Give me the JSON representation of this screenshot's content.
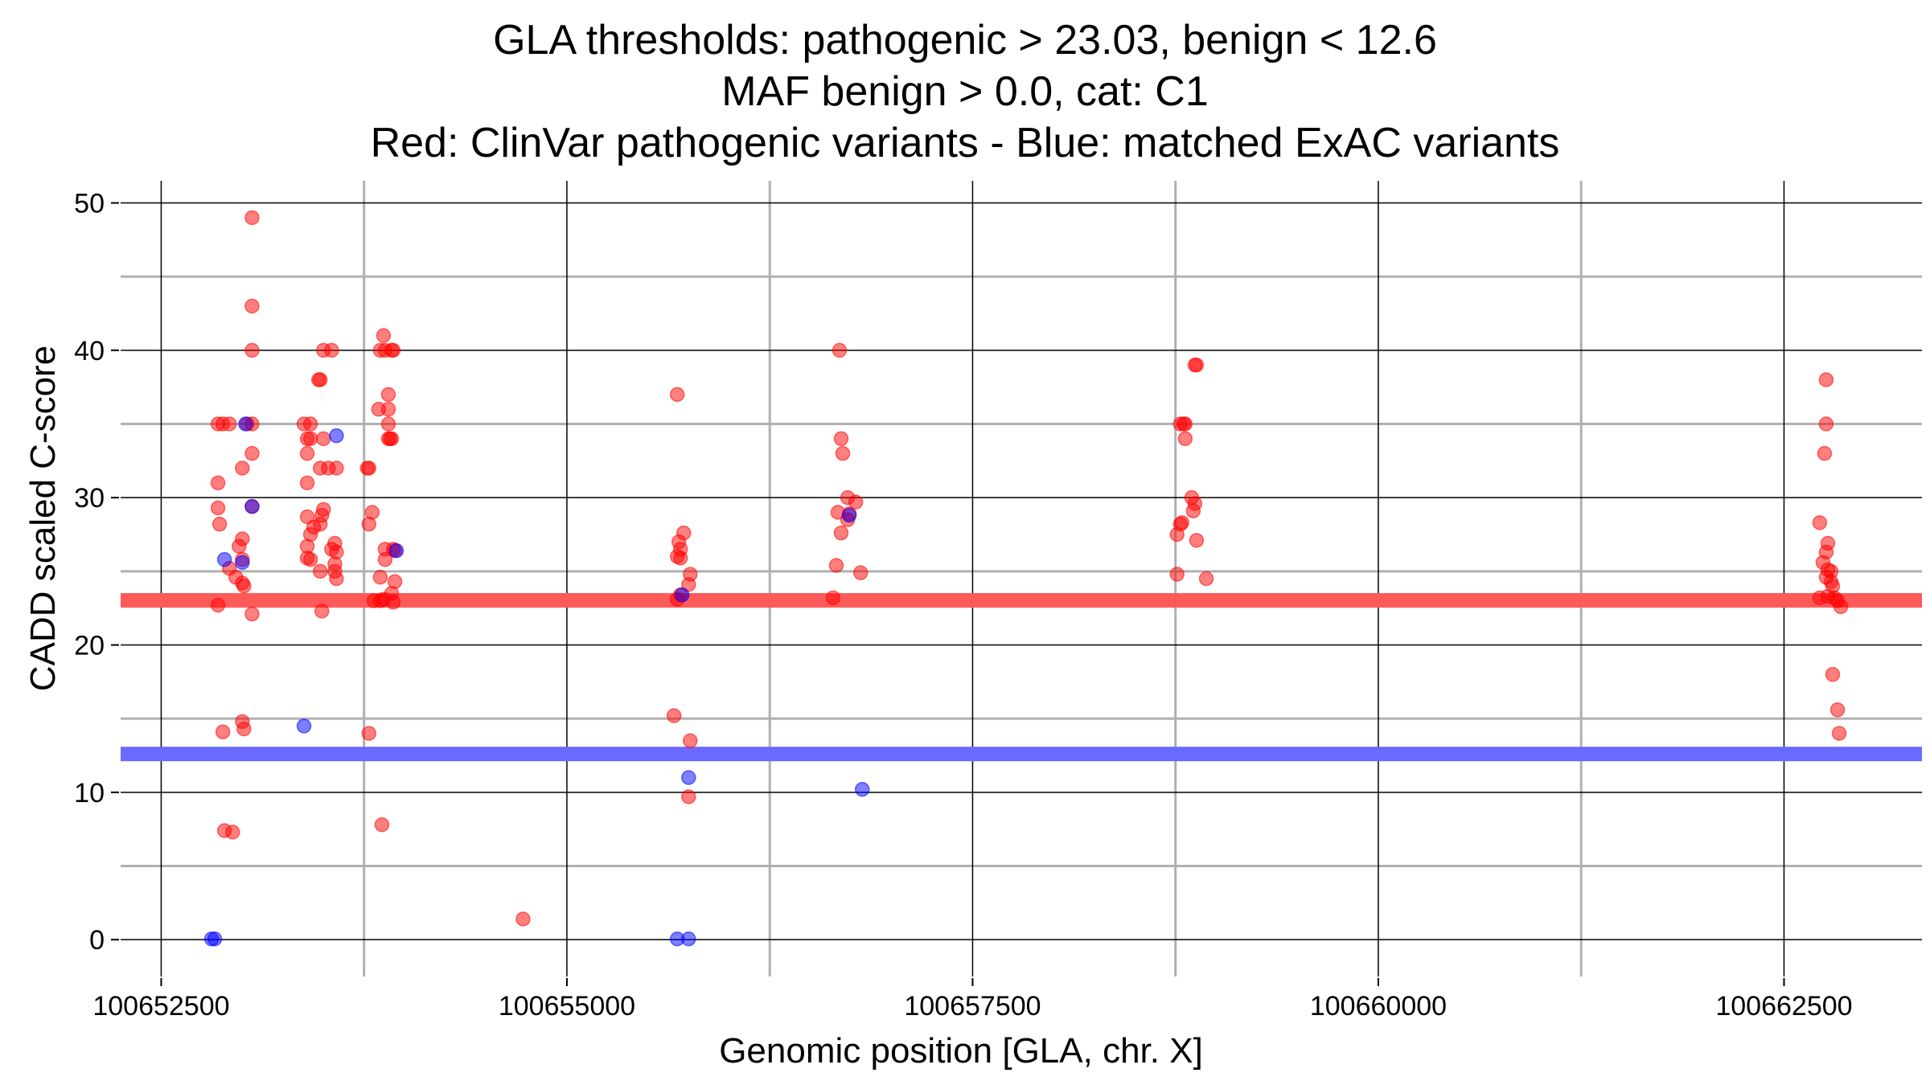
{
  "chart_data": {
    "type": "scatter",
    "title_lines": [
      "GLA thresholds: pathogenic > 23.03, benign < 12.6",
      "MAF benign > 0.0, cat: C1",
      "Red: ClinVar pathogenic variants - Blue: matched ExAC variants"
    ],
    "xlabel": "Genomic position [GLA, chr. X]",
    "ylabel": "CADD scaled C-score",
    "xlim": [
      100652250,
      100663350
    ],
    "ylim": [
      -2.5,
      51.5
    ],
    "x_ticks": [
      100652500,
      100655000,
      100657500,
      100660000,
      100662500
    ],
    "x_tick_labels": [
      "100652500",
      "100655000",
      "100657500",
      "100660000",
      "100662500"
    ],
    "x_minor_grid": [
      100653750,
      100656250,
      100658750,
      100661250
    ],
    "y_ticks": [
      0,
      10,
      20,
      30,
      40,
      50
    ],
    "y_tick_labels": [
      "0",
      "10",
      "20",
      "30",
      "40",
      "50"
    ],
    "y_minor_grid": [
      5,
      15,
      25,
      35,
      45
    ],
    "thresholds": [
      {
        "name": "pathogenic",
        "value": 23.03,
        "color": "#ff5a5a"
      },
      {
        "name": "benign",
        "value": 12.6,
        "color": "#6a6aff"
      }
    ],
    "colors": {
      "pathogenic": "#ff0000",
      "benign": "#0000ff"
    },
    "series": [
      {
        "name": "ClinVar pathogenic variants",
        "color": "#ff0000",
        "points": [
          [
            100653060,
            49
          ],
          [
            100653060,
            43
          ],
          [
            100653060,
            40
          ],
          [
            100652850,
            35
          ],
          [
            100652880,
            35
          ],
          [
            100652920,
            35
          ],
          [
            100653030,
            35
          ],
          [
            100653060,
            35
          ],
          [
            100653060,
            33
          ],
          [
            100652850,
            31
          ],
          [
            100653000,
            32
          ],
          [
            100652850,
            29.3
          ],
          [
            100653060,
            29.4
          ],
          [
            100652860,
            28.2
          ],
          [
            100653000,
            27.2
          ],
          [
            100652980,
            26.7
          ],
          [
            100652920,
            25.2
          ],
          [
            100653000,
            25.8
          ],
          [
            100652960,
            24.6
          ],
          [
            100653000,
            24.2
          ],
          [
            100653010,
            24.0
          ],
          [
            100652850,
            22.7
          ],
          [
            100653060,
            22.1
          ],
          [
            100652880,
            14.1
          ],
          [
            100653000,
            14.8
          ],
          [
            100653010,
            14.3
          ],
          [
            100652890,
            7.4
          ],
          [
            100652940,
            7.3
          ],
          [
            100653500,
            40
          ],
          [
            100653550,
            40
          ],
          [
            100653470,
            38
          ],
          [
            100653480,
            38
          ],
          [
            100653380,
            35
          ],
          [
            100653420,
            35
          ],
          [
            100653400,
            34
          ],
          [
            100653420,
            34
          ],
          [
            100653500,
            34
          ],
          [
            100653400,
            33
          ],
          [
            100653480,
            32
          ],
          [
            100653530,
            32
          ],
          [
            100653580,
            32
          ],
          [
            100653400,
            31
          ],
          [
            100653400,
            28.7
          ],
          [
            100653440,
            28.0
          ],
          [
            100653500,
            29.2
          ],
          [
            100653490,
            28.8
          ],
          [
            100653480,
            28.2
          ],
          [
            100653420,
            27.5
          ],
          [
            100653400,
            26.7
          ],
          [
            100653570,
            26.9
          ],
          [
            100653550,
            26.5
          ],
          [
            100653580,
            26.3
          ],
          [
            100653400,
            25.9
          ],
          [
            100653420,
            25.8
          ],
          [
            100653570,
            25.5
          ],
          [
            100653570,
            25.0
          ],
          [
            100653480,
            25.0
          ],
          [
            100653580,
            24.5
          ],
          [
            100653490,
            22.3
          ],
          [
            100653870,
            41
          ],
          [
            100653880,
            40
          ],
          [
            100653850,
            40
          ],
          [
            100653920,
            40
          ],
          [
            100653930,
            40
          ],
          [
            100653900,
            37
          ],
          [
            100653840,
            36
          ],
          [
            100653900,
            36
          ],
          [
            100653900,
            35
          ],
          [
            100653910,
            34
          ],
          [
            100653900,
            34
          ],
          [
            100653920,
            34
          ],
          [
            100653770,
            32
          ],
          [
            100653780,
            32
          ],
          [
            100653800,
            29
          ],
          [
            100653780,
            28.2
          ],
          [
            100653880,
            26.5
          ],
          [
            100653930,
            26.5
          ],
          [
            100653940,
            26.4
          ],
          [
            100653880,
            25.8
          ],
          [
            100653850,
            24.6
          ],
          [
            100653940,
            24.3
          ],
          [
            100653920,
            23.5
          ],
          [
            100653810,
            23.0
          ],
          [
            100653850,
            23.0
          ],
          [
            100653870,
            23.1
          ],
          [
            100653930,
            22.9
          ],
          [
            100653780,
            14.0
          ],
          [
            100653860,
            7.8
          ],
          [
            100654730,
            1.4
          ],
          [
            100655680,
            37
          ],
          [
            100655720,
            27.6
          ],
          [
            100655690,
            27.0
          ],
          [
            100655700,
            26.5
          ],
          [
            100655680,
            26.0
          ],
          [
            100655700,
            25.9
          ],
          [
            100655760,
            24.8
          ],
          [
            100655750,
            24.1
          ],
          [
            100655700,
            23.4
          ],
          [
            100655680,
            23.1
          ],
          [
            100655660,
            15.2
          ],
          [
            100655760,
            13.5
          ],
          [
            100655750,
            9.7
          ],
          [
            100656680,
            40
          ],
          [
            100656690,
            34
          ],
          [
            100656700,
            33
          ],
          [
            100656730,
            30
          ],
          [
            100656780,
            29.7
          ],
          [
            100656670,
            29.0
          ],
          [
            100656740,
            28.9
          ],
          [
            100656730,
            28.5
          ],
          [
            100656690,
            27.6
          ],
          [
            100656660,
            25.4
          ],
          [
            100656810,
            24.9
          ],
          [
            100656640,
            23.2
          ],
          [
            100658870,
            39
          ],
          [
            100658880,
            39
          ],
          [
            100658780,
            35
          ],
          [
            100658800,
            35
          ],
          [
            100658810,
            35
          ],
          [
            100658810,
            34
          ],
          [
            100658850,
            30
          ],
          [
            100658870,
            29.6
          ],
          [
            100658860,
            29.1
          ],
          [
            100658790,
            28.3
          ],
          [
            100658780,
            28.2
          ],
          [
            100658760,
            27.5
          ],
          [
            100658880,
            27.1
          ],
          [
            100658760,
            24.8
          ],
          [
            100658940,
            24.5
          ],
          [
            100662760,
            38
          ],
          [
            100662760,
            35
          ],
          [
            100662750,
            33
          ],
          [
            100662720,
            28.3
          ],
          [
            100662770,
            26.9
          ],
          [
            100662760,
            26.3
          ],
          [
            100662740,
            25.6
          ],
          [
            100662770,
            25.1
          ],
          [
            100662790,
            25.0
          ],
          [
            100662760,
            24.6
          ],
          [
            100662790,
            24.3
          ],
          [
            100662800,
            24.0
          ],
          [
            100662720,
            23.2
          ],
          [
            100662770,
            23.3
          ],
          [
            100662810,
            23.2
          ],
          [
            100662830,
            23.0
          ],
          [
            100662850,
            22.6
          ],
          [
            100662800,
            18.0
          ],
          [
            100662830,
            15.6
          ],
          [
            100662840,
            14.0
          ]
        ]
      },
      {
        "name": "matched ExAC variants",
        "color": "#0000ff",
        "points": [
          [
            100652810,
            0.05
          ],
          [
            100652830,
            0.05
          ],
          [
            100653020,
            35
          ],
          [
            100653060,
            29.4
          ],
          [
            100652890,
            25.8
          ],
          [
            100653000,
            25.6
          ],
          [
            100653380,
            14.5
          ],
          [
            100653580,
            34.2
          ],
          [
            100653950,
            26.4
          ],
          [
            100655680,
            0.05
          ],
          [
            100655750,
            0.05
          ],
          [
            100655710,
            23.4
          ],
          [
            100655750,
            11.0
          ],
          [
            100656740,
            28.8
          ],
          [
            100656820,
            10.2
          ]
        ]
      }
    ]
  }
}
